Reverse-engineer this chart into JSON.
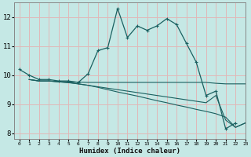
{
  "xlabel": "Humidex (Indice chaleur)",
  "bg_color": "#c5e8e5",
  "grid_color": "#e0b8b8",
  "line_color": "#1a6060",
  "xlim": [
    -0.5,
    23
  ],
  "ylim": [
    7.8,
    12.5
  ],
  "xticks": [
    0,
    1,
    2,
    3,
    4,
    5,
    6,
    7,
    8,
    9,
    10,
    11,
    12,
    13,
    14,
    15,
    16,
    17,
    18,
    19,
    20,
    21,
    22,
    23
  ],
  "yticks": [
    8,
    9,
    10,
    11,
    12
  ],
  "series0_x": [
    0,
    1,
    2,
    3,
    4,
    5,
    6,
    7,
    8,
    9,
    10,
    11,
    12,
    13,
    14,
    15,
    16,
    17,
    18,
    19,
    20,
    21,
    22
  ],
  "series0_y": [
    10.2,
    10.0,
    9.85,
    9.85,
    9.8,
    9.8,
    9.75,
    10.05,
    10.85,
    10.95,
    12.3,
    11.3,
    11.7,
    11.55,
    11.7,
    11.95,
    11.75,
    11.1,
    10.45,
    9.3,
    9.45,
    8.15,
    8.35
  ],
  "series1_x": [
    1,
    2,
    3,
    4,
    5,
    6,
    7,
    8,
    9,
    10,
    11,
    12,
    13,
    14,
    15,
    16,
    17,
    18,
    19,
    20,
    21,
    22,
    23
  ],
  "series1_y": [
    9.85,
    9.8,
    9.8,
    9.78,
    9.77,
    9.76,
    9.75,
    9.75,
    9.75,
    9.75,
    9.75,
    9.75,
    9.75,
    9.75,
    9.75,
    9.75,
    9.75,
    9.75,
    9.75,
    9.72,
    9.7,
    9.7,
    9.7
  ],
  "series2_x": [
    1,
    2,
    3,
    4,
    5,
    6,
    7,
    8,
    9,
    10,
    11,
    12,
    13,
    14,
    15,
    16,
    17,
    18,
    19,
    20,
    21,
    22,
    23
  ],
  "series2_y": [
    9.85,
    9.8,
    9.8,
    9.77,
    9.75,
    9.7,
    9.65,
    9.58,
    9.5,
    9.42,
    9.35,
    9.28,
    9.2,
    9.12,
    9.05,
    8.97,
    8.9,
    8.82,
    8.75,
    8.67,
    8.55,
    8.2,
    8.35
  ],
  "series3_x": [
    1,
    2,
    3,
    4,
    5,
    6,
    19,
    20,
    21,
    22,
    23
  ],
  "series3_y": [
    9.85,
    9.8,
    9.8,
    9.77,
    9.74,
    9.7,
    9.05,
    9.3,
    8.45,
    8.2,
    8.35
  ]
}
